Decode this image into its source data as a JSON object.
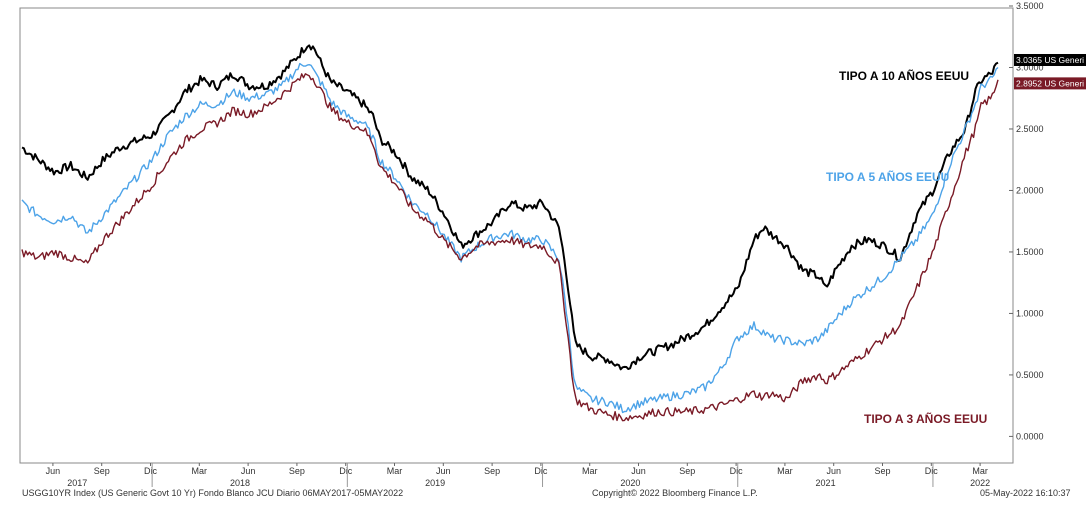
{
  "chart_data": {
    "type": "line",
    "ylim": [
      -0.2,
      3.5
    ],
    "y_ticks": [
      "0.0000",
      "0.5000",
      "1.0000",
      "1.5000",
      "2.0000",
      "2.5000",
      "3.0000",
      "3.5000"
    ],
    "y_tick_values": [
      0,
      0.5,
      1.0,
      1.5,
      2.0,
      2.5,
      3.0,
      3.5
    ],
    "month_ticks": [
      "Jun",
      "Sep",
      "Dic",
      "Mar",
      "Jun",
      "Sep",
      "Dic",
      "Mar",
      "Jun",
      "Sep",
      "Dic",
      "Mar",
      "Jun",
      "Sep",
      "Dic",
      "Mar",
      "Jun",
      "Sep",
      "Dic",
      "Mar"
    ],
    "month_tick_t": [
      1.9,
      4.9,
      7.9,
      10.9,
      13.9,
      16.9,
      19.9,
      22.9,
      25.9,
      28.9,
      31.9,
      34.9,
      37.9,
      40.9,
      43.9,
      46.9,
      49.9,
      52.9,
      55.9,
      58.9
    ],
    "year_labels": [
      "2017",
      "2018",
      "2019",
      "2020",
      "2021",
      "2022"
    ],
    "year_label_t": [
      3.4,
      13.4,
      25.4,
      37.4,
      49.4,
      58.9
    ],
    "year_separators_t": [
      8.0,
      20.0,
      32.0,
      44.0,
      56.0
    ],
    "x_domain": [
      0,
      60
    ],
    "series": [
      {
        "name": "TIPO A 10 AÑOS EEUU",
        "color": "#000000",
        "last_value_label": "3.0365 US Generi",
        "last_value": 3.0365,
        "t": [
          0,
          1,
          2,
          3,
          4,
          5,
          6,
          7,
          8,
          9,
          10,
          11,
          12,
          13,
          14,
          15,
          16,
          17,
          17.6,
          18,
          18.5,
          19,
          20,
          21,
          21.6,
          22,
          23,
          24,
          25,
          26,
          27,
          28,
          29,
          30,
          31,
          32,
          33,
          33.4,
          34,
          35,
          36,
          37,
          38,
          39,
          40,
          41,
          42,
          43,
          44,
          45,
          45.6,
          46,
          47,
          48,
          49,
          49.4,
          50,
          51,
          52,
          53,
          54,
          55,
          56,
          57,
          58,
          58.6,
          59,
          59.6,
          60
        ],
        "values": [
          2.35,
          2.25,
          2.15,
          2.2,
          2.1,
          2.25,
          2.35,
          2.4,
          2.45,
          2.6,
          2.8,
          2.9,
          2.85,
          2.95,
          2.85,
          2.85,
          2.95,
          3.1,
          3.2,
          3.15,
          3.0,
          2.88,
          2.8,
          2.7,
          2.6,
          2.42,
          2.3,
          2.1,
          2.0,
          1.8,
          1.55,
          1.65,
          1.75,
          1.9,
          1.85,
          1.9,
          1.7,
          1.4,
          0.75,
          0.65,
          0.63,
          0.55,
          0.65,
          0.7,
          0.75,
          0.82,
          0.9,
          1.05,
          1.2,
          1.6,
          1.7,
          1.65,
          1.55,
          1.35,
          1.3,
          1.2,
          1.35,
          1.55,
          1.6,
          1.55,
          1.45,
          1.8,
          2.0,
          2.3,
          2.5,
          2.8,
          2.9,
          2.95,
          3.04
        ]
      },
      {
        "name": "TIPO A 5 AÑOS EEUU",
        "color": "#4da3e8",
        "last_value_label": "",
        "last_value": 3.0,
        "t": [
          0,
          1,
          2,
          3,
          4,
          5,
          6,
          7,
          8,
          9,
          10,
          11,
          12,
          13,
          14,
          15,
          16,
          17,
          17.6,
          18,
          18.5,
          19,
          20,
          21,
          21.6,
          22,
          23,
          24,
          25,
          26,
          27,
          28,
          29,
          30,
          31,
          32,
          33,
          33.4,
          34,
          35,
          36,
          37,
          38,
          39,
          40,
          41,
          42,
          43,
          44,
          45,
          45.6,
          46,
          47,
          48,
          49,
          49.4,
          50,
          51,
          52,
          53,
          54,
          55,
          56,
          57,
          58,
          58.6,
          59,
          59.6,
          60
        ],
        "values": [
          1.9,
          1.8,
          1.75,
          1.8,
          1.65,
          1.8,
          1.95,
          2.1,
          2.25,
          2.45,
          2.6,
          2.7,
          2.7,
          2.8,
          2.75,
          2.78,
          2.85,
          3.0,
          3.05,
          2.95,
          2.85,
          2.72,
          2.6,
          2.55,
          2.42,
          2.25,
          2.1,
          1.9,
          1.8,
          1.62,
          1.45,
          1.55,
          1.62,
          1.65,
          1.6,
          1.6,
          1.45,
          1.1,
          0.4,
          0.3,
          0.28,
          0.22,
          0.27,
          0.3,
          0.33,
          0.35,
          0.4,
          0.55,
          0.8,
          0.9,
          0.85,
          0.8,
          0.78,
          0.75,
          0.8,
          0.85,
          0.95,
          1.1,
          1.2,
          1.3,
          1.45,
          1.6,
          1.8,
          2.2,
          2.5,
          2.7,
          2.85,
          2.9,
          3.0
        ]
      },
      {
        "name": "TIPO A 3 AÑOS EEUU",
        "color": "#7a1a26",
        "last_value_label": "2.8952 US Generi",
        "last_value": 2.8952,
        "t": [
          0,
          1,
          2,
          3,
          4,
          5,
          6,
          7,
          8,
          9,
          10,
          11,
          12,
          13,
          14,
          15,
          16,
          17,
          17.6,
          18,
          18.5,
          19,
          20,
          21,
          21.6,
          22,
          23,
          24,
          25,
          26,
          27,
          28,
          29,
          30,
          31,
          32,
          33,
          33.4,
          34,
          35,
          36,
          37,
          38,
          39,
          40,
          41,
          42,
          43,
          44,
          45,
          45.6,
          46,
          47,
          48,
          49,
          49.4,
          50,
          51,
          52,
          53,
          54,
          55,
          56,
          57,
          58,
          58.6,
          59,
          59.6,
          60
        ],
        "values": [
          1.5,
          1.45,
          1.5,
          1.45,
          1.4,
          1.6,
          1.75,
          1.9,
          2.05,
          2.25,
          2.4,
          2.5,
          2.55,
          2.65,
          2.62,
          2.68,
          2.78,
          2.9,
          2.95,
          2.9,
          2.78,
          2.66,
          2.55,
          2.5,
          2.38,
          2.2,
          2.05,
          1.85,
          1.75,
          1.58,
          1.45,
          1.55,
          1.58,
          1.6,
          1.55,
          1.55,
          1.4,
          1.0,
          0.3,
          0.22,
          0.18,
          0.15,
          0.17,
          0.2,
          0.2,
          0.2,
          0.22,
          0.25,
          0.3,
          0.35,
          0.32,
          0.35,
          0.3,
          0.45,
          0.5,
          0.45,
          0.5,
          0.6,
          0.7,
          0.8,
          0.9,
          1.2,
          1.5,
          1.9,
          2.3,
          2.5,
          2.7,
          2.75,
          2.9
        ]
      }
    ],
    "annotations": [
      {
        "text": "TIPO A 10 AÑOS EEUU",
        "color": "#000000"
      },
      {
        "text": "TIPO A 5 AÑOS EEUU",
        "color": "#4da3e8"
      },
      {
        "text": "TIPO A 3 AÑOS EEUU",
        "color": "#7a1a26"
      }
    ]
  },
  "footer": {
    "left": "USGG10YR Index (US Generic Govt 10 Yr) Fondo Blanco JCU  Diario 06MAY2017-05MAY2022",
    "center": "Copyright© 2022 Bloomberg Finance L.P.",
    "right": "05-May-2022 16:10:37"
  }
}
